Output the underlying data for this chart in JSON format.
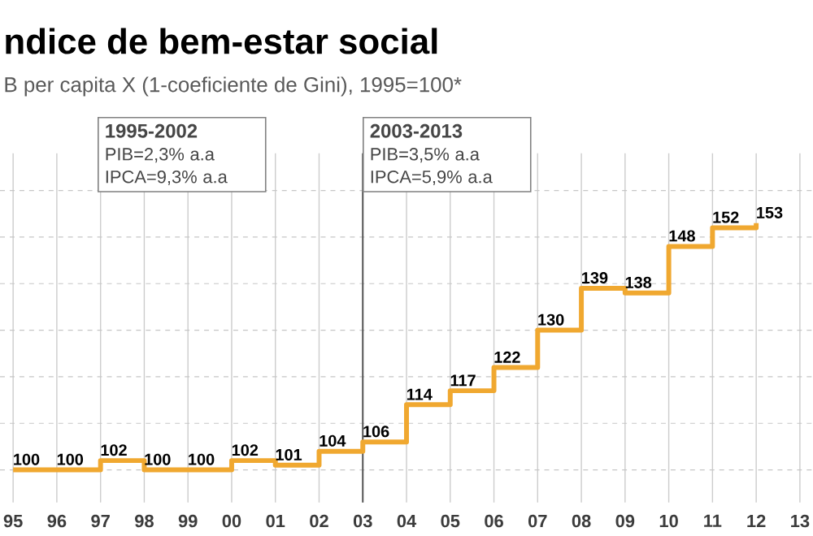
{
  "chart_data": {
    "type": "step",
    "title": "ndice de bem-estar social",
    "subtitle": "B per capita X (1-coeficiente de Gini), 1995=100*",
    "categories": [
      "95",
      "96",
      "97",
      "98",
      "99",
      "00",
      "01",
      "02",
      "03",
      "04",
      "05",
      "06",
      "07",
      "08",
      "09",
      "10",
      "11",
      "12",
      "13"
    ],
    "series": [
      {
        "color": "#f0a830",
        "values": [
          100,
          100,
          102,
          100,
          100,
          102,
          101,
          104,
          106,
          114,
          117,
          122,
          130,
          139,
          138,
          148,
          152,
          153,
          null
        ]
      }
    ],
    "data_labels": true,
    "grid": true,
    "tick_labels": "x",
    "ref_lines": [
      {
        "axis": "x",
        "value": "03",
        "color": "#555555"
      }
    ],
    "annotations": [
      "1995-2002",
      "PIB=2,3% a.a",
      "IPCA=9,3% a.a",
      "2003-2013",
      "PIB=3,5% a.a",
      "IPCA=5,9% a.a"
    ]
  }
}
